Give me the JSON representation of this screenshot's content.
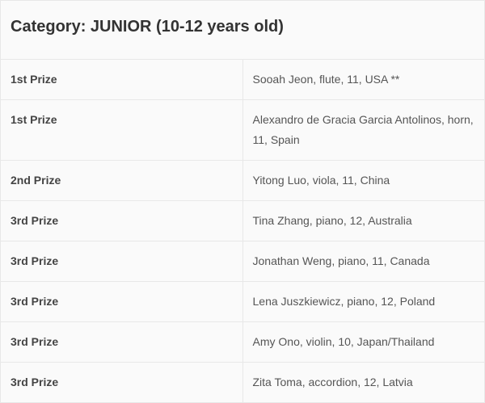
{
  "category_title": "Category: JUNIOR (10-12 years old)",
  "rows": [
    {
      "prize": "1st Prize",
      "winner": "Sooah Jeon, flute, 11, USA **"
    },
    {
      "prize": "1st Prize",
      "winner": "Alexandro de Gracia Garcia Antolinos, horn, 11, Spain"
    },
    {
      "prize": "2nd Prize",
      "winner": "Yitong Luo, viola, 11, China"
    },
    {
      "prize": "3rd Prize",
      "winner": "Tina Zhang, piano, 12, Australia"
    },
    {
      "prize": "3rd Prize",
      "winner": "Jonathan Weng, piano, 11, Canada"
    },
    {
      "prize": "3rd Prize",
      "winner": "Lena Juszkiewicz, piano, 12, Poland"
    },
    {
      "prize": "3rd Prize",
      "winner": "Amy Ono, violin, 10, Japan/Thailand"
    },
    {
      "prize": "3rd Prize",
      "winner": "Zita Toma, accordion, 12, Latvia"
    }
  ]
}
